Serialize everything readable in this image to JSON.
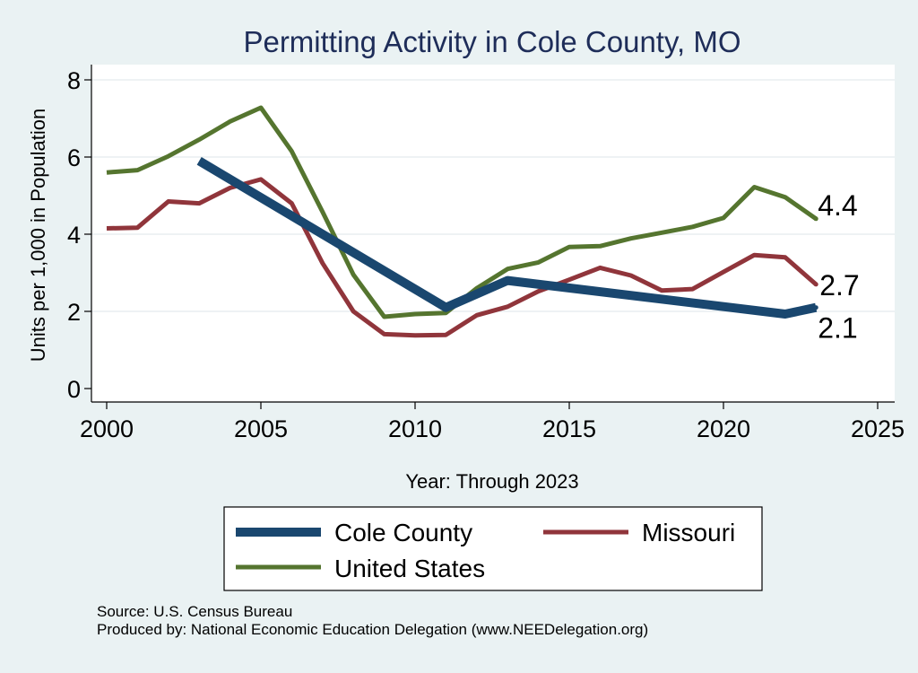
{
  "chart_data": {
    "type": "line",
    "title": "Permitting Activity in Cole County, MO",
    "xlabel": "Year: Through 2023",
    "ylabel": "Units per 1,000 in Population",
    "xlim": [
      2000,
      2025
    ],
    "ylim": [
      0,
      8
    ],
    "xticks": [
      2000,
      2005,
      2010,
      2015,
      2020,
      2025
    ],
    "yticks": [
      0,
      2,
      4,
      6,
      8
    ],
    "grid": "horizontal",
    "legend_position": "bottom",
    "series": [
      {
        "name": "Cole County",
        "color": "#1a476f",
        "x": [
          2003,
          2011,
          2013,
          2022,
          2023
        ],
        "values": [
          5.9,
          2.1,
          2.8,
          1.93,
          2.1
        ],
        "end_label": "2.1"
      },
      {
        "name": "Missouri",
        "color": "#90353b",
        "x": [
          2000,
          2001,
          2002,
          2003,
          2004,
          2005,
          2006,
          2007,
          2008,
          2009,
          2010,
          2011,
          2012,
          2013,
          2014,
          2015,
          2016,
          2017,
          2018,
          2019,
          2020,
          2021,
          2022,
          2023
        ],
        "values": [
          4.15,
          4.17,
          4.85,
          4.8,
          5.2,
          5.42,
          4.8,
          3.25,
          2.0,
          1.41,
          1.38,
          1.39,
          1.9,
          2.12,
          2.52,
          2.82,
          3.13,
          2.93,
          2.54,
          2.58,
          3.02,
          3.46,
          3.4,
          2.7
        ],
        "end_label": "2.7"
      },
      {
        "name": "United States",
        "color": "#55752f",
        "x": [
          2000,
          2001,
          2002,
          2003,
          2004,
          2005,
          2006,
          2007,
          2008,
          2009,
          2010,
          2011,
          2012,
          2013,
          2014,
          2015,
          2016,
          2017,
          2018,
          2019,
          2020,
          2021,
          2022,
          2023
        ],
        "values": [
          5.6,
          5.66,
          6.02,
          6.45,
          6.92,
          7.28,
          6.15,
          4.58,
          2.95,
          1.86,
          1.93,
          1.96,
          2.6,
          3.1,
          3.27,
          3.67,
          3.69,
          3.89,
          4.04,
          4.19,
          4.42,
          5.22,
          4.96,
          4.4
        ],
        "end_label": "4.4"
      }
    ]
  },
  "footer": {
    "source": "Source: U.S. Census Bureau",
    "produced_by": "Produced by: National Economic Education Delegation (www.NEEDelegation.org)"
  }
}
